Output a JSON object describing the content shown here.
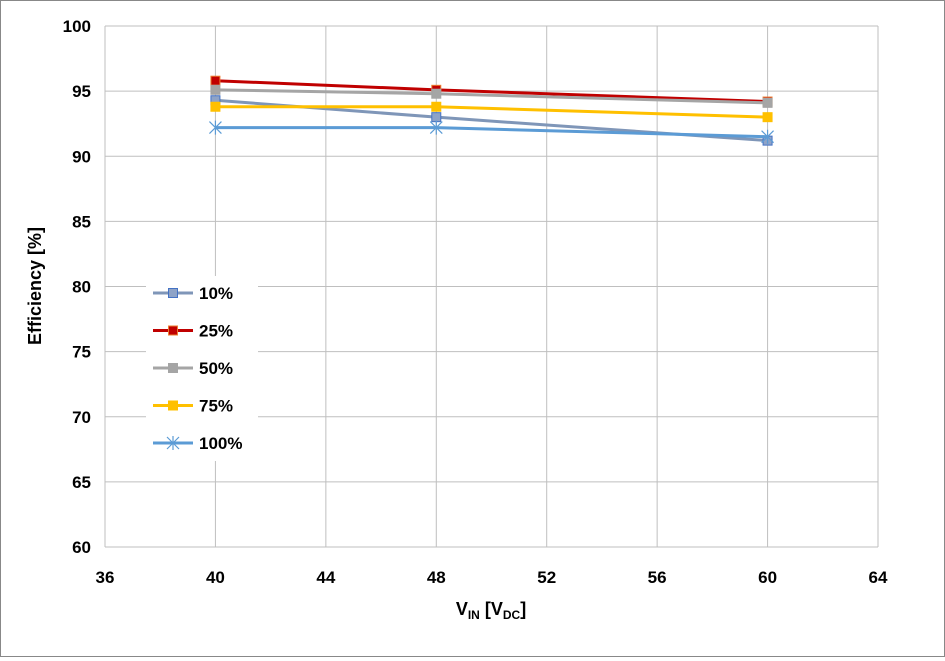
{
  "chart_data": {
    "type": "line",
    "title": "",
    "xlabel": "V",
    "xlabel_sub": "IN",
    "xlabel_unit_open": " [V",
    "xlabel_unit_sub": "DC",
    "xlabel_unit_close": "]",
    "ylabel": "Efficiency [%]",
    "xlim": [
      36,
      64
    ],
    "ylim": [
      60,
      100
    ],
    "xticks": [
      36,
      40,
      44,
      48,
      52,
      56,
      60,
      64
    ],
    "yticks": [
      60,
      65,
      70,
      75,
      80,
      85,
      90,
      95,
      100
    ],
    "grid": true,
    "legend_placement": "left-middle",
    "x": [
      40,
      48,
      60
    ],
    "series": [
      {
        "name": "10%",
        "values": [
          94.3,
          93.0,
          91.2
        ],
        "color": "#7F96B8",
        "marker": "square",
        "marker_fill": "#8EA3C7",
        "marker_edge": "#4472C4"
      },
      {
        "name": "25%",
        "values": [
          95.8,
          95.1,
          94.2
        ],
        "color": "#C00000",
        "marker": "square",
        "marker_fill": "#C00000",
        "marker_edge": "#ED7D31"
      },
      {
        "name": "50%",
        "values": [
          95.1,
          94.8,
          94.1
        ],
        "color": "#A5A5A5",
        "marker": "square",
        "marker_fill": "#A5A5A5",
        "marker_edge": "#A5A5A5"
      },
      {
        "name": "75%",
        "values": [
          93.8,
          93.8,
          93.0
        ],
        "color": "#FFC000",
        "marker": "square",
        "marker_fill": "#FFC000",
        "marker_edge": "#FFC000"
      },
      {
        "name": "100%",
        "values": [
          92.2,
          92.2,
          91.5
        ],
        "color": "#5B9BD5",
        "marker": "star",
        "marker_fill": "#5B9BD5",
        "marker_edge": "#5B9BD5"
      }
    ]
  }
}
